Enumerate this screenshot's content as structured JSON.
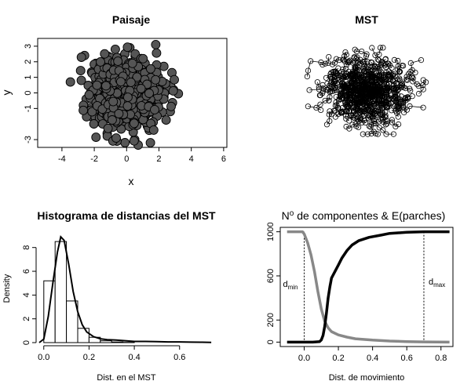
{
  "colors": {
    "foreground": "#000000",
    "filled_point": "#555555",
    "grey_curve": "#888888"
  },
  "chart_data": [
    {
      "id": "paisaje",
      "type": "scatter",
      "title": "Paisaje",
      "xlabel": "x",
      "ylabel": "y",
      "xlim": [
        -5.5,
        6.2
      ],
      "ylim": [
        -3.5,
        3.5
      ],
      "xticks": [
        "-4",
        "-2",
        "0",
        "2",
        "4",
        "6"
      ],
      "yticks": [
        "-3",
        "-1",
        "0",
        "1",
        "2",
        "3"
      ],
      "n_points": 1000,
      "distribution": "bivariate normal, mean 0, sd 1",
      "point_style": "filled grey circles with black outline",
      "points": [
        [
          -2.6,
          2.4
        ],
        [
          1.8,
          3.1
        ],
        [
          -0.7,
          2.8
        ],
        [
          2.9,
          0.2
        ],
        [
          -2.5,
          -0.4
        ],
        [
          0.5,
          -3.0
        ],
        [
          -0.1,
          -3.2
        ],
        [
          2.7,
          -1.2
        ],
        [
          -2.2,
          -1.5
        ],
        [
          2.3,
          1.7
        ],
        [
          -1.9,
          1.9
        ],
        [
          1.4,
          -2.4
        ],
        [
          -1.2,
          -2.6
        ],
        [
          2.8,
          1.3
        ],
        [
          -2.8,
          0.8
        ],
        [
          0.2,
          2.9
        ]
      ]
    },
    {
      "id": "mst",
      "type": "scatter",
      "title": "MST",
      "n_points": 1000,
      "point_style": "open black circles joined by minimum spanning tree segments",
      "axes_shown": false
    },
    {
      "id": "histograma",
      "type": "bar",
      "title": "Histograma de distancias del MST",
      "xlabel": "Dist. en el MST",
      "ylabel": "Density",
      "xlim": [
        -0.02,
        0.75
      ],
      "ylim": [
        0,
        9.3
      ],
      "xticks": [
        "0.0",
        "0.2",
        "0.4",
        "0.6"
      ],
      "yticks": [
        "0",
        "2",
        "4",
        "6",
        "8"
      ],
      "bin_width": 0.05,
      "bins": [
        {
          "x0": 0.0,
          "x1": 0.05,
          "density": 5.2
        },
        {
          "x0": 0.05,
          "x1": 0.1,
          "density": 8.5
        },
        {
          "x0": 0.1,
          "x1": 0.15,
          "density": 3.5
        },
        {
          "x0": 0.15,
          "x1": 0.2,
          "density": 1.2
        },
        {
          "x0": 0.2,
          "x1": 0.25,
          "density": 0.45
        },
        {
          "x0": 0.25,
          "x1": 0.3,
          "density": 0.15
        },
        {
          "x0": 0.3,
          "x1": 0.35,
          "density": 0.05
        },
        {
          "x0": 0.35,
          "x1": 0.4,
          "density": 0.02
        }
      ],
      "density_curve": [
        [
          -0.02,
          0.0
        ],
        [
          0.0,
          0.3
        ],
        [
          0.02,
          2.2
        ],
        [
          0.04,
          5.0
        ],
        [
          0.06,
          7.6
        ],
        [
          0.075,
          8.9
        ],
        [
          0.09,
          8.6
        ],
        [
          0.11,
          6.6
        ],
        [
          0.13,
          4.3
        ],
        [
          0.15,
          2.6
        ],
        [
          0.17,
          1.5
        ],
        [
          0.19,
          0.9
        ],
        [
          0.22,
          0.5
        ],
        [
          0.25,
          0.32
        ],
        [
          0.28,
          0.25
        ],
        [
          0.32,
          0.22
        ],
        [
          0.36,
          0.16
        ],
        [
          0.4,
          0.1
        ],
        [
          0.45,
          0.1
        ],
        [
          0.5,
          0.08
        ],
        [
          0.55,
          0.06
        ],
        [
          0.6,
          0.06
        ],
        [
          0.65,
          0.04
        ],
        [
          0.7,
          0.03
        ],
        [
          0.74,
          0.02
        ]
      ]
    },
    {
      "id": "componentes",
      "type": "line",
      "title_main": "N",
      "title_sup": "o",
      "title_rest": " de componentes & E(parches)",
      "xlabel": "Dist. de movimiento",
      "ylabel": "",
      "xlim": [
        -0.14,
        0.87
      ],
      "ylim": [
        -40,
        1040
      ],
      "xticks": [
        "0.0",
        "0.2",
        "0.4",
        "0.6",
        "0.8"
      ],
      "yticks": [
        "0",
        "200",
        "600",
        "1000"
      ],
      "series": [
        {
          "name": "",
          "color": "#000000",
          "points": [
            [
              -0.1,
              0
            ],
            [
              0.05,
              0
            ],
            [
              0.09,
              5
            ],
            [
              0.1,
              20
            ],
            [
              0.11,
              60
            ],
            [
              0.12,
              140
            ],
            [
              0.13,
              260
            ],
            [
              0.14,
              400
            ],
            [
              0.15,
              500
            ],
            [
              0.16,
              580
            ],
            [
              0.18,
              640
            ],
            [
              0.2,
              700
            ],
            [
              0.22,
              760
            ],
            [
              0.25,
              830
            ],
            [
              0.28,
              880
            ],
            [
              0.32,
              920
            ],
            [
              0.38,
              950
            ],
            [
              0.45,
              970
            ],
            [
              0.5,
              985
            ],
            [
              0.6,
              995
            ],
            [
              0.7,
              1000
            ],
            [
              0.85,
              1000
            ]
          ]
        },
        {
          "name": "",
          "color": "#888888",
          "points": [
            [
              -0.1,
              1000
            ],
            [
              -0.01,
              1000
            ],
            [
              0.0,
              980
            ],
            [
              0.02,
              900
            ],
            [
              0.04,
              790
            ],
            [
              0.06,
              640
            ],
            [
              0.08,
              460
            ],
            [
              0.1,
              300
            ],
            [
              0.12,
              190
            ],
            [
              0.14,
              130
            ],
            [
              0.16,
              95
            ],
            [
              0.2,
              65
            ],
            [
              0.25,
              45
            ],
            [
              0.3,
              30
            ],
            [
              0.4,
              18
            ],
            [
              0.5,
              10
            ],
            [
              0.6,
              5
            ],
            [
              0.7,
              2
            ],
            [
              0.85,
              0
            ]
          ]
        }
      ],
      "vlines": [
        {
          "x": 0.0,
          "label_main": "d",
          "label_sub": "min"
        },
        {
          "x": 0.7,
          "label_main": "d",
          "label_sub": "max"
        }
      ]
    }
  ]
}
